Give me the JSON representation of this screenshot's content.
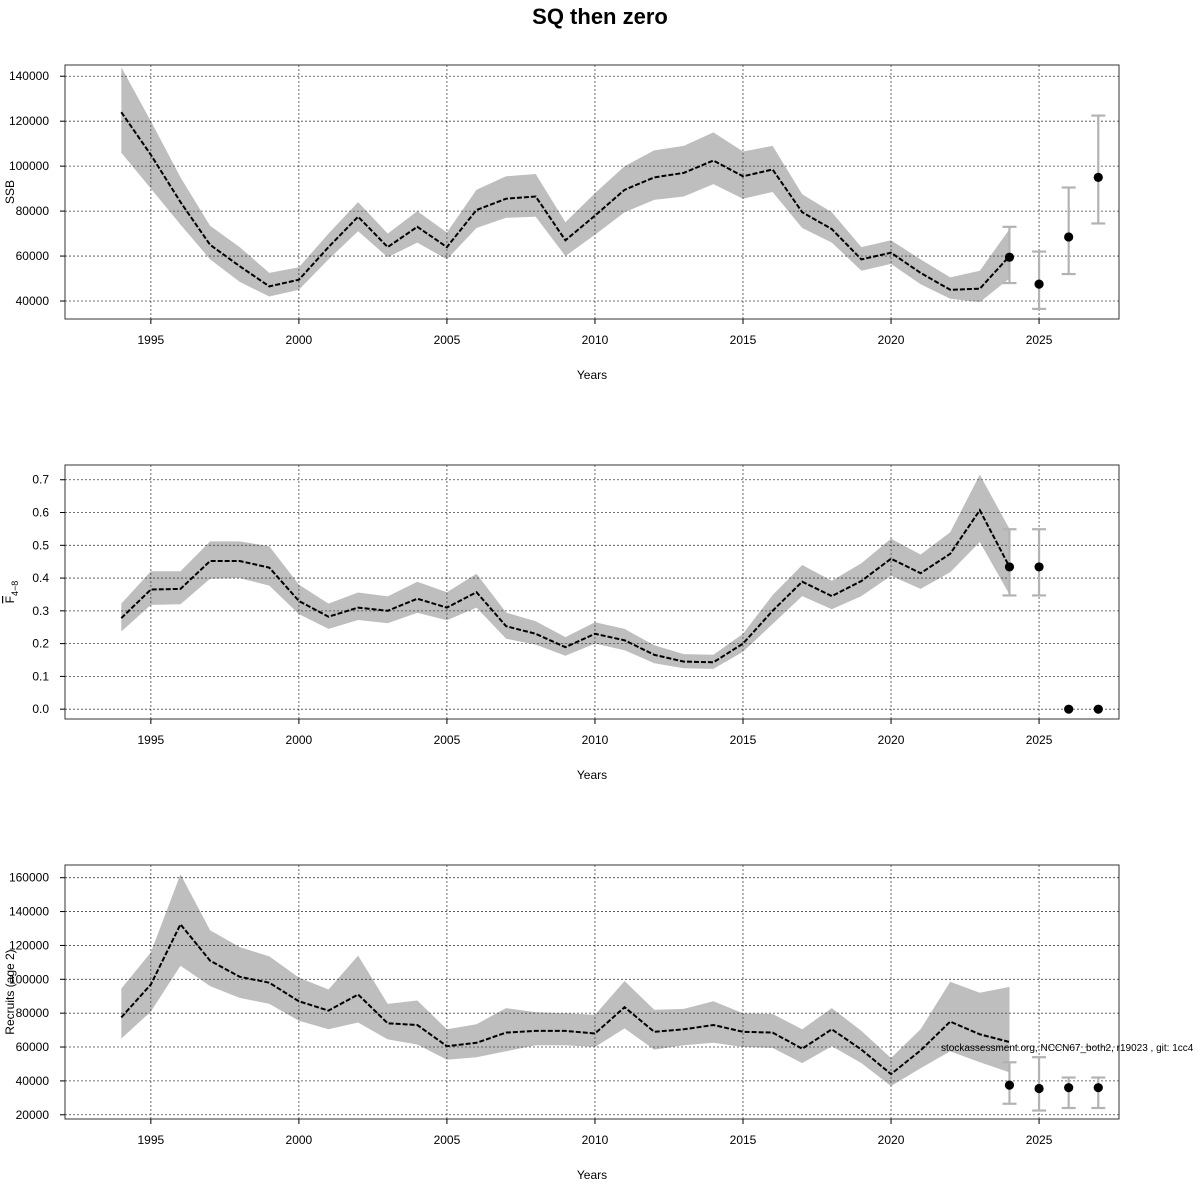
{
  "title": "SQ then zero",
  "footnote": "stockassessment.org, NCCN67_both2, r19023 , git: 1cc4",
  "colors": {
    "band": "#bebebe",
    "line": "#000000",
    "errorbar": "#b3b3b3",
    "point": "#000000"
  },
  "chart_data": [
    {
      "type": "line",
      "ylabel": "SSB",
      "xlabel": "Years",
      "grid": true,
      "xlim": [
        1992.1,
        2027.7
      ],
      "ylim": [
        32000,
        145000
      ],
      "xticks": [
        1995,
        2000,
        2005,
        2010,
        2015,
        2020,
        2025
      ],
      "yticks": [
        40000,
        60000,
        80000,
        100000,
        120000,
        140000
      ],
      "x": [
        1994,
        1995,
        1996,
        1997,
        1998,
        1999,
        2000,
        2001,
        2002,
        2003,
        2004,
        2005,
        2006,
        2007,
        2008,
        2009,
        2010,
        2011,
        2012,
        2013,
        2014,
        2015,
        2016,
        2017,
        2018,
        2019,
        2020,
        2021,
        2022,
        2023,
        2024
      ],
      "estimate": [
        124000,
        105000,
        84000,
        65000,
        55500,
        46500,
        49500,
        64000,
        77500,
        64000,
        73000,
        64000,
        80500,
        85500,
        86500,
        67000,
        78000,
        89500,
        95000,
        97000,
        102500,
        95500,
        98500,
        79500,
        72000,
        58500,
        61500,
        52500,
        45000,
        45500,
        60000
      ],
      "lower": [
        106000,
        90000,
        74000,
        58500,
        48500,
        42000,
        45000,
        58500,
        71000,
        59500,
        66000,
        58500,
        72500,
        77000,
        77500,
        60000,
        69500,
        79500,
        85000,
        86500,
        92000,
        85500,
        88500,
        72500,
        66000,
        53500,
        56500,
        47500,
        41000,
        39500,
        50000
      ],
      "upper": [
        144000,
        120000,
        95000,
        73500,
        64000,
        52500,
        55000,
        70000,
        84000,
        70000,
        80000,
        70500,
        89500,
        95500,
        96500,
        75000,
        88000,
        100000,
        107000,
        109000,
        115000,
        106500,
        109000,
        87500,
        79500,
        64000,
        67000,
        58500,
        50500,
        53500,
        72000
      ],
      "forecast": [
        {
          "year": 2024,
          "value": 59500,
          "lower": 48000,
          "upper": 73000
        },
        {
          "year": 2025,
          "value": 47500,
          "lower": 36500,
          "upper": 62000
        },
        {
          "year": 2026,
          "value": 68500,
          "lower": 52000,
          "upper": 90500
        },
        {
          "year": 2027,
          "value": 95000,
          "lower": 74500,
          "upper": 122500
        }
      ]
    },
    {
      "type": "line",
      "ylabel_main": "F",
      "ylabel_sub": "4−8",
      "xlabel": "Years",
      "grid": true,
      "xlim": [
        1992.1,
        2027.7
      ],
      "ylim": [
        -0.03,
        0.745
      ],
      "xticks": [
        1995,
        2000,
        2005,
        2010,
        2015,
        2020,
        2025
      ],
      "yticks": [
        0.0,
        0.1,
        0.2,
        0.3,
        0.4,
        0.5,
        0.6,
        0.7
      ],
      "ytick_labels": [
        "0.0",
        "0.1",
        "0.2",
        "0.3",
        "0.4",
        "0.5",
        "0.6",
        "0.7"
      ],
      "x": [
        1994,
        1995,
        1996,
        1997,
        1998,
        1999,
        2000,
        2001,
        2002,
        2003,
        2004,
        2005,
        2006,
        2007,
        2008,
        2009,
        2010,
        2011,
        2012,
        2013,
        2014,
        2015,
        2016,
        2017,
        2018,
        2019,
        2020,
        2021,
        2022,
        2023,
        2024
      ],
      "estimate": [
        0.278,
        0.365,
        0.367,
        0.452,
        0.452,
        0.432,
        0.33,
        0.282,
        0.31,
        0.3,
        0.337,
        0.31,
        0.357,
        0.253,
        0.23,
        0.189,
        0.23,
        0.21,
        0.166,
        0.145,
        0.143,
        0.2,
        0.3,
        0.389,
        0.345,
        0.391,
        0.459,
        0.415,
        0.474,
        0.607,
        0.434
      ],
      "lower": [
        0.237,
        0.318,
        0.32,
        0.398,
        0.4,
        0.377,
        0.29,
        0.245,
        0.272,
        0.262,
        0.294,
        0.271,
        0.31,
        0.215,
        0.197,
        0.163,
        0.2,
        0.18,
        0.14,
        0.125,
        0.123,
        0.175,
        0.26,
        0.345,
        0.305,
        0.345,
        0.407,
        0.367,
        0.418,
        0.51,
        0.35
      ],
      "upper": [
        0.322,
        0.421,
        0.421,
        0.512,
        0.512,
        0.497,
        0.38,
        0.322,
        0.356,
        0.344,
        0.389,
        0.357,
        0.413,
        0.295,
        0.268,
        0.22,
        0.265,
        0.245,
        0.195,
        0.168,
        0.166,
        0.23,
        0.348,
        0.44,
        0.392,
        0.445,
        0.52,
        0.472,
        0.54,
        0.715,
        0.55
      ],
      "forecast": [
        {
          "year": 2024,
          "value": 0.434,
          "lower": 0.347,
          "upper": 0.549
        },
        {
          "year": 2025,
          "value": 0.434,
          "lower": 0.347,
          "upper": 0.549
        },
        {
          "year": 2026,
          "value": 0.0
        },
        {
          "year": 2027,
          "value": 0.0
        }
      ]
    },
    {
      "type": "line",
      "ylabel": "Recruits (age 2)",
      "xlabel": "Years",
      "grid": true,
      "xlim": [
        1992.1,
        2027.7
      ],
      "ylim": [
        17500,
        167500
      ],
      "xticks": [
        1995,
        2000,
        2005,
        2010,
        2015,
        2020,
        2025
      ],
      "yticks": [
        20000,
        40000,
        60000,
        80000,
        100000,
        120000,
        140000,
        160000
      ],
      "x": [
        1994,
        1995,
        1996,
        1997,
        1998,
        1999,
        2000,
        2001,
        2002,
        2003,
        2004,
        2005,
        2006,
        2007,
        2008,
        2009,
        2010,
        2011,
        2012,
        2013,
        2014,
        2015,
        2016,
        2017,
        2018,
        2019,
        2020,
        2021,
        2022,
        2023,
        2024
      ],
      "estimate": [
        77500,
        97000,
        132500,
        111000,
        101500,
        98000,
        87000,
        81500,
        91000,
        74000,
        73000,
        60500,
        62500,
        68500,
        69500,
        69500,
        68000,
        83500,
        69000,
        70500,
        73000,
        69000,
        68500,
        59000,
        70500,
        58500,
        44000,
        58000,
        75000,
        67500,
        63000
      ],
      "lower": [
        65000,
        81000,
        108000,
        96000,
        89000,
        85500,
        75500,
        70500,
        74500,
        64500,
        61500,
        52500,
        54000,
        57500,
        61000,
        61000,
        60000,
        71000,
        58500,
        61000,
        62500,
        60000,
        59500,
        50500,
        60500,
        50500,
        37000,
        47500,
        57500,
        51000,
        45000
      ],
      "upper": [
        94500,
        116000,
        162000,
        129000,
        119000,
        113500,
        101000,
        94000,
        114000,
        85500,
        87500,
        70500,
        73500,
        83000,
        80500,
        80000,
        79000,
        99000,
        82000,
        82500,
        87000,
        80000,
        79500,
        70500,
        83000,
        69500,
        53500,
        70500,
        98500,
        92000,
        95500
      ],
      "forecast": [
        {
          "year": 2024,
          "value": 37500,
          "lower": 26500,
          "upper": 51000
        },
        {
          "year": 2025,
          "value": 35500,
          "lower": 22500,
          "upper": 54000
        },
        {
          "year": 2026,
          "value": 36000,
          "lower": 24000,
          "upper": 42000
        },
        {
          "year": 2027,
          "value": 36000,
          "lower": 24000,
          "upper": 42000
        }
      ]
    }
  ]
}
